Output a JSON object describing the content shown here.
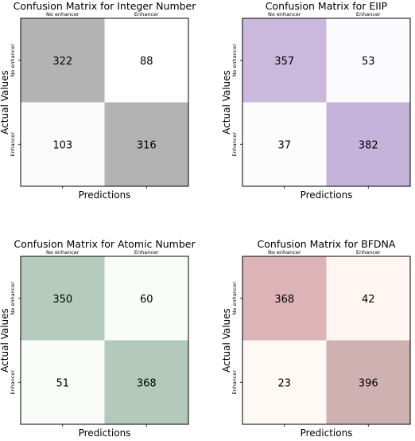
{
  "chart_data": [
    {
      "type": "heatmap",
      "title": "Confusion Matrix for Integer Number",
      "xlabel": "Predictions",
      "ylabel": "Actual Values",
      "x_tick_labels": [
        "No enhancer",
        "Enhancer"
      ],
      "y_tick_labels": [
        "No enhancer",
        "Enhancer"
      ],
      "values": [
        [
          322,
          88
        ],
        [
          103,
          316
        ]
      ],
      "colors": {
        "high": "#b3b3b3",
        "low": "#ffffff",
        "off_low": "#fbfbfb"
      }
    },
    {
      "type": "heatmap",
      "title": "Confusion Matrix for EIIP",
      "xlabel": "Predictions",
      "ylabel": "Actual Values",
      "x_tick_labels": [
        "No enhancer",
        "Enhancer"
      ],
      "y_tick_labels": [
        "No enhancer",
        "Enhancer"
      ],
      "values": [
        [
          357,
          53
        ],
        [
          37,
          382
        ]
      ],
      "colors": {
        "high": "#cab8dd",
        "diag2": "#c5b3dc",
        "low": "#fbfbfd",
        "off_low": "#fcfcfc"
      }
    },
    {
      "type": "heatmap",
      "title": "Confusion Matrix for Atomic Number",
      "xlabel": "Predictions",
      "ylabel": "Actual Values",
      "x_tick_labels": [
        "No enhancer",
        "Enhancer"
      ],
      "y_tick_labels": [
        "No enhancer",
        "Enhancer"
      ],
      "values": [
        [
          350,
          60
        ],
        [
          51,
          368
        ]
      ],
      "colors": {
        "high": "#b5cbbe",
        "diag2": "#b2c9bb",
        "low": "#fafcfa",
        "off_low": "#f9fbf9"
      }
    },
    {
      "type": "heatmap",
      "title": "Confusion Matrix for BFDNA",
      "xlabel": "Predictions",
      "ylabel": "Actual Values",
      "x_tick_labels": [
        "No enhancer",
        "Enhancer"
      ],
      "y_tick_labels": [
        "No enhancer",
        "Enhancer"
      ],
      "values": [
        [
          368,
          42
        ],
        [
          23,
          396
        ]
      ],
      "colors": {
        "high": "#dcb4b8",
        "diag2": "#cfb1b1",
        "low": "#fff6f4",
        "off_low": "#fff9f5"
      }
    }
  ]
}
